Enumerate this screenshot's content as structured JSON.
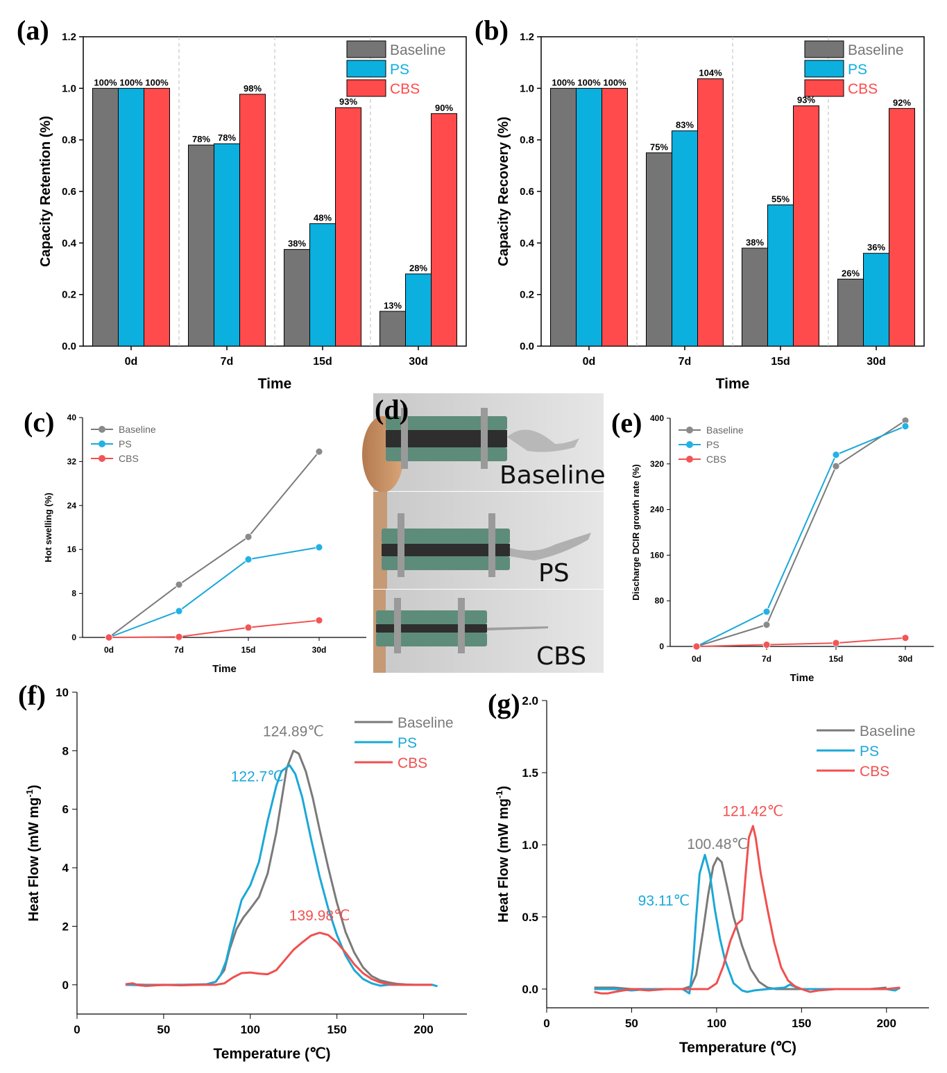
{
  "colors": {
    "baseline": "#757575",
    "ps": "#0bb0df",
    "cbs": "#ff4b4b",
    "baseline_line": "#7a7a7a",
    "ps_line": "#1aa8d8",
    "cbs_line": "#f0504f"
  },
  "photo": {
    "label": "(d)",
    "captions": [
      "Baseline",
      "PS",
      "CBS"
    ]
  },
  "chart_data": [
    {
      "id": "a",
      "label": "(a)",
      "type": "bar",
      "categories": [
        "0d",
        "7d",
        "15d",
        "30d"
      ],
      "series": [
        {
          "name": "Baseline",
          "values": [
            1.0,
            0.78,
            0.375,
            0.135
          ],
          "labels": [
            "100%",
            "78%",
            "38%",
            "13%"
          ]
        },
        {
          "name": "PS",
          "values": [
            1.0,
            0.785,
            0.475,
            0.28
          ],
          "labels": [
            "100%",
            "78%",
            "48%",
            "28%"
          ]
        },
        {
          "name": "CBS",
          "values": [
            1.0,
            0.977,
            0.925,
            0.902
          ],
          "labels": [
            "100%",
            "98%",
            "93%",
            "90%"
          ]
        }
      ],
      "xlabel": "Time",
      "ylabel": "Capacity Retention (%)",
      "ylim": [
        0,
        1.2
      ],
      "yticks": [
        "0.0",
        "0.2",
        "0.4",
        "0.6",
        "0.8",
        "1.0",
        "1.2"
      ],
      "legend": "top-right"
    },
    {
      "id": "b",
      "label": "(b)",
      "type": "bar",
      "categories": [
        "0d",
        "7d",
        "15d",
        "30d"
      ],
      "series": [
        {
          "name": "Baseline",
          "values": [
            1.0,
            0.75,
            0.38,
            0.26
          ],
          "labels": [
            "100%",
            "75%",
            "38%",
            "26%"
          ]
        },
        {
          "name": "PS",
          "values": [
            1.0,
            0.835,
            0.548,
            0.36
          ],
          "labels": [
            "100%",
            "83%",
            "55%",
            "36%"
          ]
        },
        {
          "name": "CBS",
          "values": [
            1.0,
            1.037,
            0.932,
            0.922
          ],
          "labels": [
            "100%",
            "104%",
            "93%",
            "92%"
          ]
        }
      ],
      "xlabel": "Time",
      "ylabel": "Capacity Recovery (%)",
      "ylim": [
        0,
        1.2
      ],
      "yticks": [
        "0.0",
        "0.2",
        "0.4",
        "0.6",
        "0.8",
        "1.0",
        "1.2"
      ],
      "legend": "top-right"
    },
    {
      "id": "c",
      "label": "(c)",
      "type": "line",
      "categories": [
        "0d",
        "7d",
        "15d",
        "30d"
      ],
      "series": [
        {
          "name": "Baseline",
          "values": [
            0,
            9.6,
            18.3,
            33.8
          ]
        },
        {
          "name": "PS",
          "values": [
            0,
            4.8,
            14.2,
            16.4
          ]
        },
        {
          "name": "CBS",
          "values": [
            0,
            0.1,
            1.8,
            3.1
          ]
        }
      ],
      "xlabel": "Time",
      "ylabel": "Hot swelling (%)",
      "ylim": [
        0,
        40
      ],
      "yticks": [
        "0",
        "8",
        "16",
        "24",
        "32",
        "40"
      ],
      "legend": "top-left"
    },
    {
      "id": "e",
      "label": "(e)",
      "type": "line",
      "categories": [
        "0d",
        "7d",
        "15d",
        "30d"
      ],
      "series": [
        {
          "name": "Baseline",
          "values": [
            0,
            38,
            316,
            396
          ]
        },
        {
          "name": "PS",
          "values": [
            0,
            61,
            336,
            386
          ]
        },
        {
          "name": "CBS",
          "values": [
            0,
            3,
            6,
            15
          ]
        }
      ],
      "xlabel": "Time",
      "ylabel": "Discharge DCIR growth rate (%)",
      "ylim": [
        0,
        400
      ],
      "yticks": [
        "0",
        "80",
        "160",
        "240",
        "320",
        "400"
      ],
      "legend": "top-left"
    },
    {
      "id": "f",
      "label": "(f)",
      "type": "line",
      "xlabel": "Temperature (℃)",
      "ylabel": "Heat Flow (mW mg",
      "ylabel_sup": "-1",
      "ylabel_end": ")",
      "xlim": [
        0,
        225
      ],
      "ylim": [
        -1,
        10
      ],
      "xticks": [
        "0",
        "50",
        "100",
        "150",
        "200"
      ],
      "yticks": [
        "0",
        "2",
        "4",
        "6",
        "8",
        "10"
      ],
      "legend": "top-right",
      "annotations": [
        {
          "text": "124.89℃",
          "series": "Baseline",
          "x": 124.89,
          "y": 8.5
        },
        {
          "text": "122.7℃",
          "series": "PS",
          "x": 104,
          "y": 6.95
        },
        {
          "text": "139.98℃",
          "series": "CBS",
          "x": 140,
          "y": 2.2
        }
      ],
      "series": [
        {
          "name": "Baseline",
          "x": [
            28,
            40,
            60,
            75,
            80,
            85,
            88,
            92,
            96,
            100,
            105,
            110,
            115,
            118,
            121,
            124.89,
            128,
            132,
            136,
            140,
            145,
            150,
            155,
            160,
            165,
            170,
            175,
            180,
            185,
            190,
            195,
            200,
            205
          ],
          "y": [
            0.02,
            0.0,
            0.0,
            0.02,
            0.1,
            0.5,
            1.2,
            1.9,
            2.3,
            2.6,
            3.0,
            3.8,
            5.2,
            6.3,
            7.4,
            8.0,
            7.9,
            7.3,
            6.4,
            5.3,
            4.0,
            2.8,
            1.8,
            1.1,
            0.6,
            0.3,
            0.15,
            0.08,
            0.03,
            0.01,
            0.0,
            0.0,
            0.0
          ]
        },
        {
          "name": "PS",
          "x": [
            28,
            40,
            60,
            70,
            75,
            80,
            83,
            86,
            90,
            95,
            100,
            105,
            110,
            115,
            118,
            122.7,
            126,
            130,
            135,
            140,
            145,
            150,
            155,
            160,
            165,
            170,
            175,
            180,
            190,
            200,
            205,
            208
          ],
          "y": [
            0.0,
            -0.02,
            0.0,
            0.0,
            0.02,
            0.1,
            0.35,
            0.8,
            1.8,
            2.9,
            3.4,
            4.2,
            5.6,
            6.8,
            7.3,
            7.5,
            7.2,
            6.4,
            5.0,
            3.7,
            2.6,
            1.7,
            1.0,
            0.5,
            0.2,
            0.05,
            -0.03,
            0.0,
            0.0,
            0.0,
            0.0,
            -0.05
          ]
        },
        {
          "name": "CBS",
          "x": [
            28,
            32,
            36,
            40,
            50,
            60,
            70,
            80,
            85,
            90,
            95,
            100,
            105,
            110,
            115,
            120,
            125,
            130,
            135,
            139.98,
            145,
            150,
            155,
            160,
            165,
            170,
            175,
            180,
            190,
            200,
            205
          ],
          "y": [
            0.02,
            0.05,
            -0.02,
            -0.04,
            0.0,
            -0.02,
            0.0,
            0.0,
            0.05,
            0.25,
            0.4,
            0.42,
            0.38,
            0.36,
            0.5,
            0.85,
            1.2,
            1.45,
            1.68,
            1.78,
            1.7,
            1.45,
            1.1,
            0.7,
            0.4,
            0.2,
            0.08,
            0.02,
            0.0,
            0.0,
            0.0
          ]
        }
      ]
    },
    {
      "id": "g",
      "label": "(g)",
      "type": "line",
      "xlabel": "Temperature (℃)",
      "ylabel": "Heat Flow (mW mg",
      "ylabel_sup": "-1",
      "ylabel_end": ")",
      "xlim": [
        0,
        225
      ],
      "ylim": [
        -0.13,
        2.0
      ],
      "xticks": [
        "0",
        "50",
        "100",
        "150",
        "200"
      ],
      "yticks": [
        "0.0",
        "0.5",
        "1.0",
        "1.5",
        "2.0"
      ],
      "legend": "top-right",
      "annotations": [
        {
          "text": "100.48℃",
          "series": "Baseline",
          "x": 100.5,
          "y": 0.97
        },
        {
          "text": "93.11℃",
          "series": "PS",
          "x": 69,
          "y": 0.58
        },
        {
          "text": "121.42℃",
          "series": "CBS",
          "x": 121.4,
          "y": 1.2
        }
      ],
      "series": [
        {
          "name": "Baseline",
          "x": [
            28,
            40,
            50,
            60,
            70,
            80,
            85,
            88,
            92,
            95,
            98,
            100.48,
            103,
            106,
            110,
            115,
            120,
            125,
            130,
            135,
            140,
            150,
            160,
            170,
            180,
            190,
            200
          ],
          "y": [
            0.01,
            0.01,
            0.0,
            0.0,
            0.0,
            0.0,
            0.02,
            0.1,
            0.4,
            0.65,
            0.85,
            0.91,
            0.88,
            0.72,
            0.5,
            0.3,
            0.14,
            0.05,
            0.01,
            0.0,
            0.0,
            0.0,
            0.0,
            0.0,
            0.0,
            0.0,
            0.01
          ]
        },
        {
          "name": "PS",
          "x": [
            28,
            40,
            50,
            60,
            70,
            75,
            80,
            84,
            86,
            88,
            90,
            93.11,
            96,
            99,
            102,
            105,
            110,
            115,
            118,
            122,
            130,
            140,
            143,
            150,
            160,
            170,
            180,
            190,
            200,
            205,
            208
          ],
          "y": [
            0.0,
            0.0,
            -0.01,
            0.0,
            0.0,
            0.0,
            0.0,
            -0.03,
            0.15,
            0.5,
            0.8,
            0.93,
            0.8,
            0.55,
            0.35,
            0.2,
            0.04,
            -0.01,
            -0.02,
            -0.01,
            0.0,
            0.01,
            0.03,
            0.0,
            0.0,
            0.0,
            0.0,
            0.0,
            0.0,
            -0.01,
            0.01
          ]
        },
        {
          "name": "CBS",
          "x": [
            28,
            32,
            36,
            40,
            50,
            60,
            70,
            80,
            90,
            95,
            100,
            104,
            108,
            112,
            115,
            117,
            119,
            121.42,
            123,
            126,
            130,
            134,
            138,
            142,
            146,
            150,
            155,
            160,
            170,
            180,
            190,
            200,
            208
          ],
          "y": [
            -0.02,
            -0.03,
            -0.03,
            -0.02,
            0.0,
            -0.01,
            0.0,
            0.0,
            0.0,
            0.0,
            0.04,
            0.16,
            0.33,
            0.45,
            0.48,
            0.78,
            1.05,
            1.13,
            1.05,
            0.8,
            0.55,
            0.32,
            0.15,
            0.06,
            0.02,
            0.0,
            -0.02,
            -0.01,
            0.0,
            0.0,
            0.0,
            0.0,
            0.01
          ]
        }
      ]
    }
  ]
}
